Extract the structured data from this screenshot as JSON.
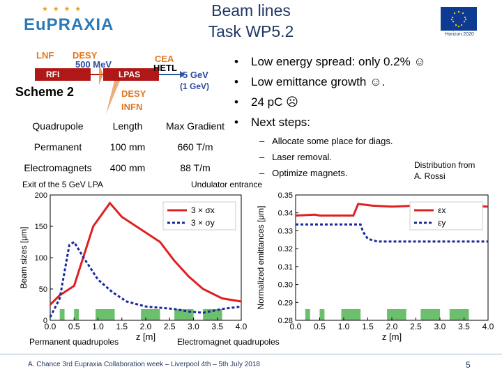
{
  "header": {
    "logo_text": "EuPRAXIA",
    "title_line1": "Beam lines",
    "title_line2": "Task WP5.2",
    "flag_caption": "Horizon 2020"
  },
  "scheme": {
    "lnf": "LNF",
    "desy_top": "DESY",
    "energy_500": "500 MeV",
    "cea": "CEA",
    "hetl": "HETL",
    "rfi": "RFI",
    "lpas": "LPAS",
    "gev5": "5 GeV",
    "gev1": "(1 GeV)",
    "scheme_label": "Scheme 2",
    "desy_bottom": "DESY",
    "infn": "INFN"
  },
  "table": {
    "headers": [
      "Quadrupole",
      "Length",
      "Max Gradient"
    ],
    "rows": [
      [
        "Permanent",
        "100 mm",
        "660 T/m"
      ],
      [
        "Electromagnets",
        "400 mm",
        "88 T/m"
      ]
    ]
  },
  "bullets": [
    "Low energy spread: only 0.2% ☺",
    "Low emittance growth ☺.",
    "24 pC ☹",
    "Next steps:"
  ],
  "sub_bullets": [
    "Allocate some place for diags.",
    "Laser removal.",
    "Optimize magnets."
  ],
  "distribution": [
    "Distribution from",
    "A. Rossi"
  ],
  "labels": {
    "exit": "Exit of the 5 GeV LPA",
    "undulator": "Undulator entrance",
    "permanent_quads": "Permanent quadrupoles",
    "electromagnet_quads": "Electromagnet quadrupoles"
  },
  "footer": {
    "text": "A. Chance 3rd Eupraxia Collaboration week – Liverpool 4th – 5th July 2018",
    "page": "5"
  },
  "colors": {
    "title": "#203864",
    "series_x": "#e02020",
    "series_y": "#1a2a9a",
    "quad": "#6cbf6c"
  },
  "chart_data": [
    {
      "type": "line",
      "xlabel": "z [m]",
      "ylabel": "Beam sizes [μm]",
      "xlim": [
        0.0,
        4.0
      ],
      "ylim": [
        0,
        200
      ],
      "xticks": [
        "0.0",
        "0.5",
        "1.0",
        "1.5",
        "2.0",
        "2.5",
        "3.0",
        "3.5",
        "4.0"
      ],
      "yticks": [
        "0",
        "50",
        "100",
        "150",
        "200"
      ],
      "legend": "top-right",
      "series": [
        {
          "name": "3 × σx",
          "style": "solid",
          "x": [
            0.0,
            0.2,
            0.5,
            0.9,
            1.25,
            1.5,
            1.9,
            2.3,
            2.6,
            2.9,
            3.2,
            3.6,
            4.0
          ],
          "y": [
            25,
            40,
            55,
            150,
            187,
            165,
            145,
            125,
            95,
            70,
            50,
            35,
            30
          ]
        },
        {
          "name": "3 × σy",
          "style": "dashed",
          "x": [
            0.0,
            0.2,
            0.4,
            0.5,
            0.7,
            1.0,
            1.3,
            1.6,
            2.0,
            2.3,
            2.6,
            2.9,
            3.2,
            3.6,
            4.0
          ],
          "y": [
            5,
            35,
            120,
            125,
            100,
            65,
            45,
            30,
            22,
            20,
            18,
            14,
            12,
            18,
            22
          ]
        }
      ],
      "quad_blocks": [
        [
          0.2,
          0.3
        ],
        [
          0.5,
          0.6
        ],
        [
          0.95,
          1.35
        ],
        [
          1.9,
          2.3
        ],
        [
          2.6,
          3.0
        ],
        [
          3.2,
          3.6
        ]
      ]
    },
    {
      "type": "line",
      "xlabel": "z [m]",
      "ylabel": "Normalized emittances [μm]",
      "xlim": [
        0.0,
        4.0
      ],
      "ylim": [
        0.28,
        0.35
      ],
      "xticks": [
        "0.0",
        "0.5",
        "1.0",
        "1.5",
        "2.0",
        "2.5",
        "3.0",
        "3.5",
        "4.0"
      ],
      "yticks": [
        "0.28",
        "0.29",
        "0.30",
        "0.31",
        "0.32",
        "0.33",
        "0.34",
        "0.35"
      ],
      "legend": "top-right",
      "series": [
        {
          "name": "εx",
          "style": "solid",
          "x": [
            0.0,
            0.4,
            0.5,
            1.2,
            1.3,
            1.6,
            2.0,
            2.5,
            3.0,
            3.5,
            4.0
          ],
          "y": [
            0.3385,
            0.339,
            0.3385,
            0.3385,
            0.345,
            0.344,
            0.3435,
            0.344,
            0.3445,
            0.344,
            0.3435
          ]
        },
        {
          "name": "εy",
          "style": "dashed",
          "x": [
            0.0,
            0.5,
            0.55,
            1.3,
            1.35,
            1.4,
            1.5,
            1.7,
            2.5,
            3.0,
            3.5,
            4.0
          ],
          "y": [
            0.3335,
            0.3335,
            0.3335,
            0.3335,
            0.3335,
            0.3295,
            0.3255,
            0.324,
            0.324,
            0.324,
            0.324,
            0.324
          ]
        }
      ],
      "quad_blocks": [
        [
          0.2,
          0.3
        ],
        [
          0.5,
          0.6
        ],
        [
          0.95,
          1.35
        ],
        [
          1.9,
          2.3
        ],
        [
          2.6,
          3.0
        ],
        [
          3.2,
          3.6
        ]
      ]
    }
  ]
}
